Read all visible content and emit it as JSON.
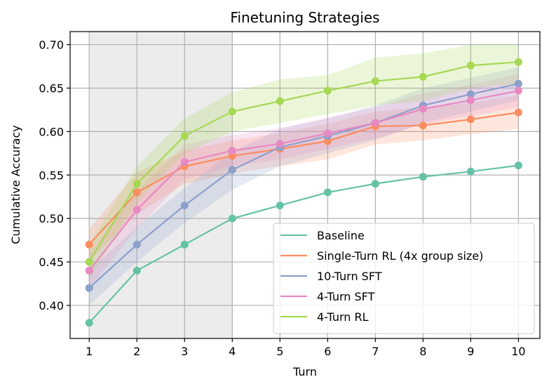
{
  "chart_data": {
    "type": "line",
    "title": "Finetuning Strategies",
    "xlabel": "Turn",
    "ylabel": "Cumulative Accuracy",
    "x": [
      1,
      2,
      3,
      4,
      5,
      6,
      7,
      8,
      9,
      10
    ],
    "xlim": [
      0.6,
      10.45
    ],
    "ylim": [
      0.362,
      0.715
    ],
    "xticks": [
      "1",
      "2",
      "3",
      "4",
      "5",
      "6",
      "7",
      "8",
      "9",
      "10"
    ],
    "yticks": [
      "0.40",
      "0.45",
      "0.50",
      "0.55",
      "0.60",
      "0.65",
      "0.70"
    ],
    "shaded_x_range": [
      1,
      4
    ],
    "grid": true,
    "legend_position": "lower-right",
    "series": [
      {
        "name": "Baseline",
        "color": "#66c2a5",
        "values": [
          0.38,
          0.44,
          0.47,
          0.5,
          0.515,
          0.53,
          0.54,
          0.548,
          0.554,
          0.561
        ],
        "band_low": null,
        "band_high": null
      },
      {
        "name": "Single-Turn RL (4x group size)",
        "color": "#fc8d62",
        "values": [
          0.47,
          0.53,
          0.56,
          0.572,
          0.58,
          0.589,
          0.606,
          0.607,
          0.614,
          0.622
        ],
        "band_low": [
          0.452,
          0.505,
          0.54,
          0.552,
          0.56,
          0.568,
          0.585,
          0.59,
          0.597,
          0.603
        ],
        "band_high": [
          0.488,
          0.553,
          0.578,
          0.59,
          0.598,
          0.609,
          0.623,
          0.628,
          0.633,
          0.642
        ]
      },
      {
        "name": "10-Turn SFT",
        "color": "#8da0cb",
        "values": [
          0.42,
          0.47,
          0.515,
          0.556,
          0.582,
          0.595,
          0.61,
          0.63,
          0.643,
          0.655
        ],
        "band_low": [
          0.4,
          0.45,
          0.495,
          0.533,
          0.56,
          0.575,
          0.59,
          0.61,
          0.623,
          0.636
        ],
        "band_high": [
          0.44,
          0.49,
          0.535,
          0.577,
          0.603,
          0.615,
          0.63,
          0.65,
          0.662,
          0.674
        ]
      },
      {
        "name": "4-Turn SFT",
        "color": "#e78ac3",
        "values": [
          0.44,
          0.51,
          0.565,
          0.578,
          0.586,
          0.598,
          0.61,
          0.626,
          0.636,
          0.647
        ],
        "band_low": [
          0.42,
          0.488,
          0.545,
          0.56,
          0.568,
          0.58,
          0.592,
          0.608,
          0.618,
          0.628
        ],
        "band_high": [
          0.46,
          0.532,
          0.585,
          0.596,
          0.604,
          0.616,
          0.628,
          0.644,
          0.654,
          0.666
        ]
      },
      {
        "name": "4-Turn RL",
        "color": "#a6d854",
        "values": [
          0.45,
          0.54,
          0.595,
          0.623,
          0.635,
          0.647,
          0.658,
          0.663,
          0.676,
          0.68
        ],
        "band_low": [
          0.43,
          0.52,
          0.575,
          0.6,
          0.61,
          0.62,
          0.63,
          0.635,
          0.65,
          0.655
        ],
        "band_high": [
          0.47,
          0.56,
          0.615,
          0.645,
          0.66,
          0.665,
          0.685,
          0.69,
          0.7,
          0.7
        ]
      }
    ]
  }
}
